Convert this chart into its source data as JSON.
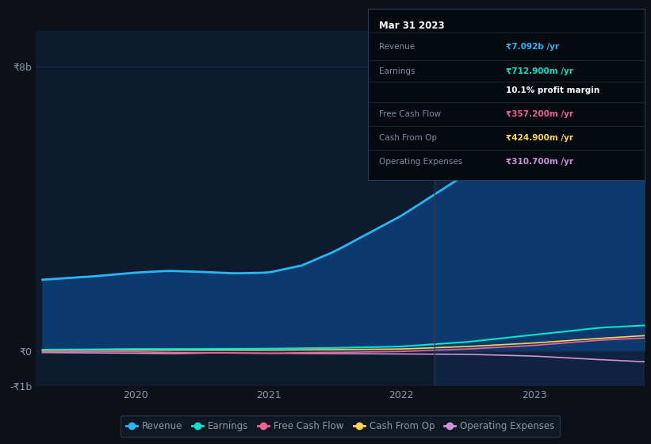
{
  "background_color": "#0d1117",
  "plot_bg_color": "#0d1b2e",
  "plot_bg_highlight": "#0f2340",
  "grid_color": "#1e3050",
  "text_color": "#8899aa",
  "title_text": "Mar 31 2023",
  "ylabel_top": "₹8b",
  "ylabel_zero": "₹0",
  "ylabel_bottom": "-₹1b",
  "x_ticks": [
    2020,
    2021,
    2022,
    2023
  ],
  "series": {
    "Revenue": {
      "color": "#29b6f6",
      "fill_color": "#0d3a6e",
      "lw": 2.0
    },
    "Earnings": {
      "color": "#00e5cc",
      "lw": 1.5
    },
    "Free Cash Flow": {
      "color": "#f06292",
      "lw": 1.2
    },
    "Cash From Op": {
      "color": "#ffd54f",
      "lw": 1.2
    },
    "Operating Expenses": {
      "color": "#ce93d8",
      "lw": 1.2
    }
  },
  "tooltip": {
    "bg": "#050a10",
    "border": "#2a3a50",
    "title_color": "#ffffff",
    "label_color": "#7a8fa0",
    "title": "Mar 31 2023",
    "rows": [
      {
        "label": "Revenue",
        "value": "₹7.092b /yr",
        "vc": "#29b6f6"
      },
      {
        "label": "Earnings",
        "value": "₹712.900m /yr",
        "vc": "#00e5cc"
      },
      {
        "label": "",
        "value": "10.1% profit margin",
        "vc": "#ffffff"
      },
      {
        "label": "Free Cash Flow",
        "value": "₹357.200m /yr",
        "vc": "#f06292"
      },
      {
        "label": "Cash From Op",
        "value": "₹424.900m /yr",
        "vc": "#ffd54f"
      },
      {
        "label": "Operating Expenses",
        "value": "₹310.700m /yr",
        "vc": "#ce93d8"
      }
    ]
  },
  "highlight_x": 2022.25,
  "ylim": [
    -1000000000.0,
    9000000000.0
  ],
  "xlim_start": 2019.25,
  "xlim_end": 2023.83
}
